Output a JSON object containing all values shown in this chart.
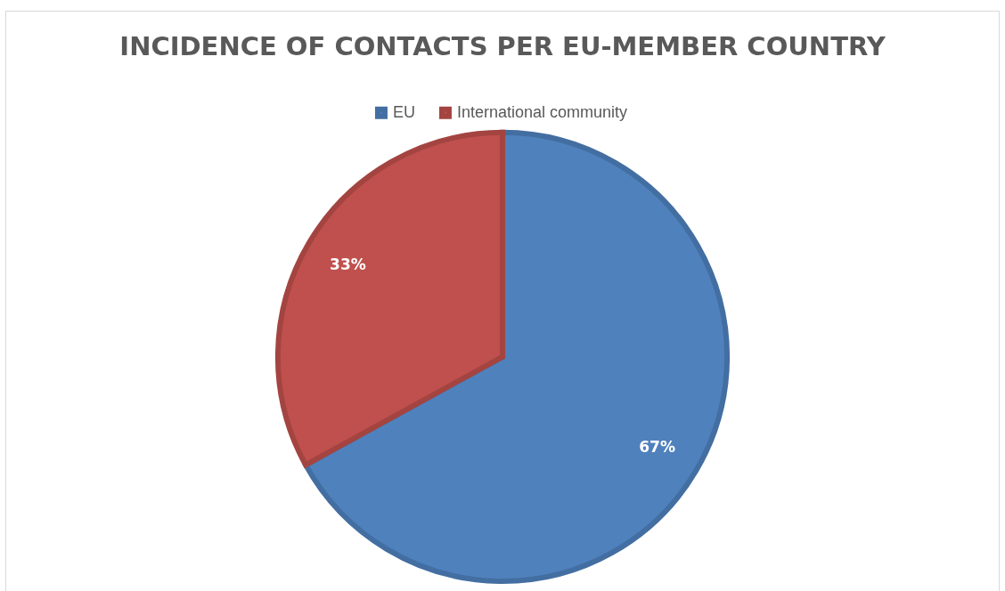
{
  "chart_data": {
    "type": "pie",
    "title": "INCIDENCE OF CONTACTS PER EU-MEMBER COUNTRY",
    "categories": [
      "EU",
      "International community"
    ],
    "values": [
      67,
      33
    ],
    "colors": [
      "#4f81bd",
      "#c0504d"
    ],
    "value_labels": [
      "67%",
      "33%"
    ],
    "legend": "top"
  }
}
